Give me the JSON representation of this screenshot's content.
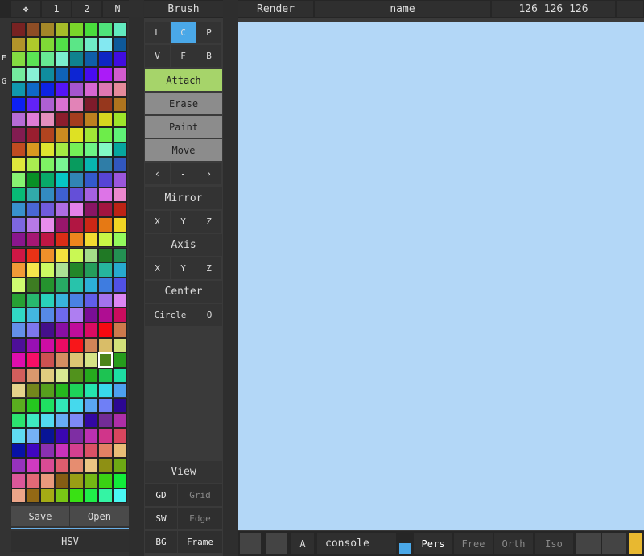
{
  "left_panel": {
    "tabs": [
      "❖",
      "1",
      "2",
      "N"
    ],
    "side_labels": [
      "E",
      "G"
    ],
    "buttons": [
      "Save",
      "Open"
    ],
    "footer": "HSV"
  },
  "brush_panel": {
    "title": "Brush",
    "modes": [
      "L",
      "C",
      "P",
      "V",
      "F",
      "B"
    ],
    "actions": [
      "Attach",
      "Erase",
      "Paint",
      "Move"
    ],
    "nav": [
      "‹",
      "-",
      "›"
    ],
    "mirror": {
      "label": "Mirror",
      "axes": [
        "X",
        "Y",
        "Z"
      ]
    },
    "axis": {
      "label": "Axis",
      "axes": [
        "X",
        "Y",
        "Z"
      ]
    },
    "center": {
      "label": "Center",
      "shape": "Circle",
      "option": "O"
    },
    "view": {
      "label": "View",
      "options": [
        "GD",
        "Grid",
        "SW",
        "Edge",
        "BG",
        "Frame"
      ]
    }
  },
  "render_bar": {
    "title": "Render",
    "name": "name",
    "color_value": "126 126 126"
  },
  "bottom_bar": {
    "button": "A",
    "console": "console",
    "views": [
      "Pers",
      "Free",
      "Orth",
      "Iso"
    ]
  }
}
